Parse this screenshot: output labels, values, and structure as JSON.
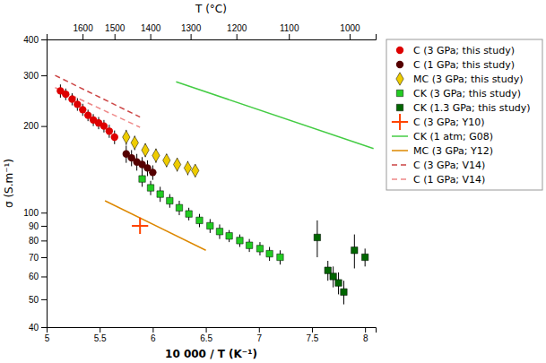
{
  "chart_data": {
    "type": "scatter",
    "xlabel": "10 000 / T (K⁻¹)",
    "ylabel": "σ (S.m⁻¹)",
    "x2label": "T (°C)",
    "xlim": [
      5.0,
      8.1
    ],
    "xticks": [
      5,
      5.5,
      6,
      6.5,
      7,
      7.5,
      8
    ],
    "x2lim": [
      5.0,
      8.1
    ],
    "x2ticks": [
      {
        "value": 5.3386,
        "label": "1600"
      },
      {
        "value": 5.63968,
        "label": "1500"
      },
      {
        "value": 5.97675,
        "label": "1400"
      },
      {
        "value": 6.35667,
        "label": "1300"
      },
      {
        "value": 6.78818,
        "label": "1200"
      },
      {
        "value": 7.28253,
        "label": "1100"
      },
      {
        "value": 7.85453,
        "label": "1000"
      }
    ],
    "ylim": [
      40,
      400
    ],
    "yticks": [
      40,
      50,
      60,
      70,
      80,
      90,
      100,
      200,
      300,
      400
    ],
    "log": "y",
    "grid": false,
    "legend": "upper right",
    "series": [
      {
        "name": "C (3 GPa; this study)",
        "type": "scatter",
        "marker": "circle",
        "color": "#dd0000",
        "x": [
          5.13,
          5.18,
          5.24,
          5.29,
          5.34,
          5.39,
          5.44,
          5.49,
          5.54,
          5.59,
          5.64
        ],
        "values": [
          265,
          258,
          248,
          238,
          228,
          218,
          210,
          205,
          200,
          192,
          183
        ],
        "errors": [
          14,
          12,
          12,
          12,
          11,
          10,
          10,
          10,
          10,
          10,
          10
        ]
      },
      {
        "name": "C (1 GPa; this study)",
        "type": "scatter",
        "marker": "circle",
        "color": "#550000",
        "x": [
          5.75,
          5.8,
          5.85,
          5.9,
          5.95,
          6.0
        ],
        "values": [
          160,
          155,
          150,
          147,
          143,
          138
        ],
        "errors": [
          11,
          10,
          10,
          9,
          9,
          8
        ]
      },
      {
        "name": "MC (3 GPa; this study)",
        "type": "scatter",
        "marker": "diamond",
        "color": "#eecc00",
        "x": [
          5.75,
          5.83,
          5.93,
          6.03,
          6.13,
          6.23,
          6.33,
          6.4
        ],
        "values": [
          183,
          175,
          165,
          158,
          152,
          147,
          143,
          140
        ],
        "errors": [
          11,
          10,
          9,
          9,
          8,
          8,
          8,
          7
        ]
      },
      {
        "name": "CK (3 GPa; this study)",
        "type": "scatter",
        "marker": "square",
        "color": "#22cc22",
        "x": [
          5.9,
          5.98,
          6.07,
          6.16,
          6.25,
          6.34,
          6.44,
          6.54,
          6.63,
          6.72,
          6.82,
          6.91,
          7.01,
          7.1,
          7.2
        ],
        "values": [
          131,
          122,
          116,
          110,
          104,
          99,
          94,
          90,
          86,
          83,
          80,
          77,
          75,
          72,
          70
        ],
        "errors": [
          8,
          7,
          7,
          6,
          6,
          5,
          5,
          5,
          5,
          4,
          4,
          4,
          4,
          4,
          4
        ]
      },
      {
        "name": "CK (1.3 GPa; this study)",
        "type": "scatter",
        "marker": "square",
        "color": "#006600",
        "x": [
          7.55,
          7.65,
          7.7,
          7.75,
          7.8,
          7.9,
          8.0
        ],
        "values": [
          82,
          63,
          60,
          57,
          53,
          74,
          70
        ],
        "errors": [
          12,
          5,
          5,
          5,
          5,
          10,
          5
        ]
      },
      {
        "name": "C (3 GPa; Y10)",
        "type": "scatter",
        "marker": "plus",
        "color": "#ff4400",
        "x": [
          5.88
        ],
        "values": [
          90
        ]
      },
      {
        "name": "CK (1 atm; G08)",
        "type": "line",
        "line_style": "solid",
        "color": "#44cc44",
        "x": [
          6.22,
          8.08
        ],
        "values": [
          285,
          167
        ]
      },
      {
        "name": "MC (3 GPa; Y12)",
        "type": "line",
        "line_style": "solid",
        "color": "#dd8800",
        "x": [
          5.55,
          6.5
        ],
        "values": [
          110,
          74
        ]
      },
      {
        "name": "C (3 GPa; V14)",
        "type": "line",
        "line_style": "dashed",
        "color": "#cc4444",
        "x": [
          5.08,
          5.88
        ],
        "values": [
          300,
          215
        ]
      },
      {
        "name": "C (1 GPa; V14)",
        "type": "line",
        "line_style": "dashed",
        "color": "#ee8888",
        "x": [
          5.08,
          5.88
        ],
        "values": [
          272,
          198
        ]
      }
    ]
  }
}
